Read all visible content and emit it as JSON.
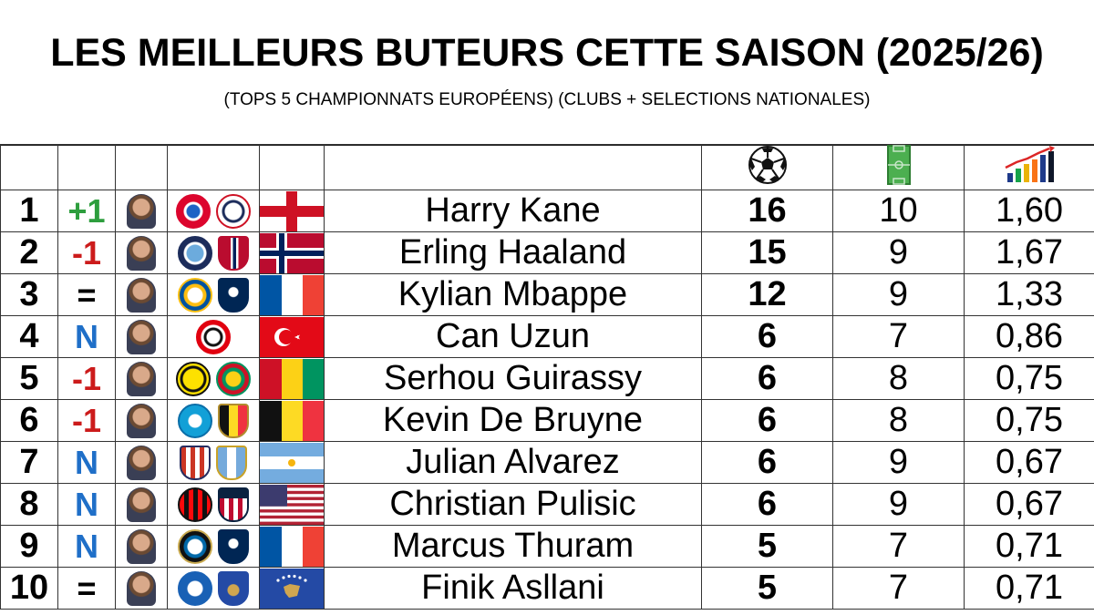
{
  "title": "LES MEILLEURS BUTEURS CETTE SAISON (2025/26)",
  "subtitle": "(TOPS 5 CHAMPIONNATS EUROPÉENS) (CLUBS + SELECTIONS NATIONALES)",
  "header_icons": [
    "soccer-ball-icon",
    "pitch-icon",
    "growth-chart-icon"
  ],
  "colors": {
    "up": "#2e9e3e",
    "down": "#cc1b1b",
    "new": "#1f6fc8"
  },
  "rows": [
    {
      "rank": "1",
      "move": "+1",
      "name": "Harry Kane",
      "goals": "16",
      "matches": "10",
      "ratio": "1,60"
    },
    {
      "rank": "2",
      "move": "-1",
      "name": "Erling Haaland",
      "goals": "15",
      "matches": "9",
      "ratio": "1,67"
    },
    {
      "rank": "3",
      "move": "=",
      "name": "Kylian Mbappe",
      "goals": "12",
      "matches": "9",
      "ratio": "1,33"
    },
    {
      "rank": "4",
      "move": "N",
      "name": "Can Uzun",
      "goals": "6",
      "matches": "7",
      "ratio": "0,86"
    },
    {
      "rank": "5",
      "move": "-1",
      "name": "Serhou Guirassy",
      "goals": "6",
      "matches": "8",
      "ratio": "0,75"
    },
    {
      "rank": "6",
      "move": "-1",
      "name": "Kevin De Bruyne",
      "goals": "6",
      "matches": "8",
      "ratio": "0,75"
    },
    {
      "rank": "7",
      "move": "N",
      "name": "Julian Alvarez",
      "goals": "6",
      "matches": "9",
      "ratio": "0,67"
    },
    {
      "rank": "8",
      "move": "N",
      "name": "Christian Pulisic",
      "goals": "6",
      "matches": "9",
      "ratio": "0,67"
    },
    {
      "rank": "9",
      "move": "N",
      "name": "Marcus Thuram",
      "goals": "5",
      "matches": "7",
      "ratio": "0,71"
    },
    {
      "rank": "10",
      "move": "=",
      "name": "Finik Asllani",
      "goals": "5",
      "matches": "7",
      "ratio": "0,71"
    }
  ]
}
